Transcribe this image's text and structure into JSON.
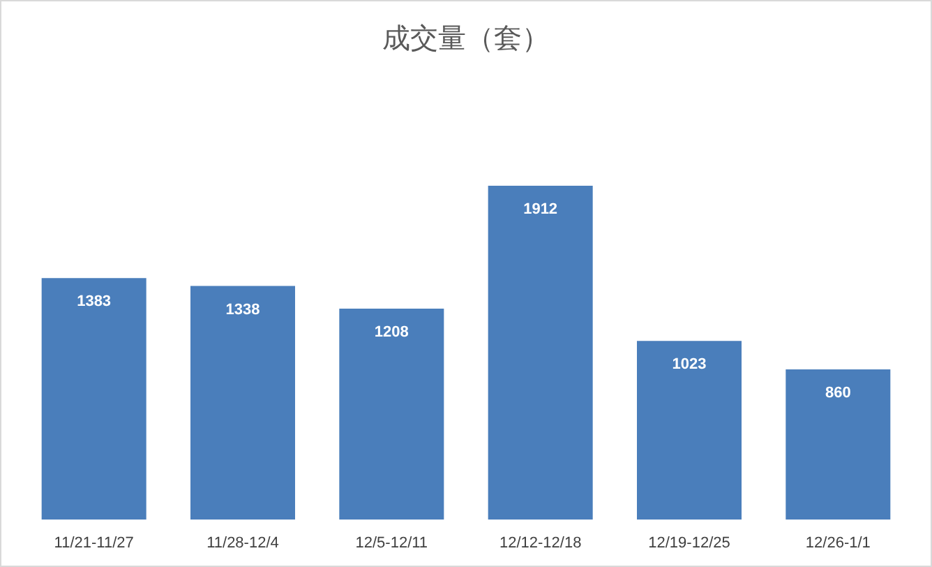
{
  "chart_data": {
    "type": "bar",
    "title": "成交量（套）",
    "categories": [
      "11/21-11/27",
      "11/28-12/4",
      "12/5-12/11",
      "12/12-12/18",
      "12/19-12/25",
      "12/26-1/1"
    ],
    "values": [
      1383,
      1338,
      1208,
      1912,
      1023,
      860
    ],
    "color": "#4a7ebb",
    "data_labels": true
  }
}
